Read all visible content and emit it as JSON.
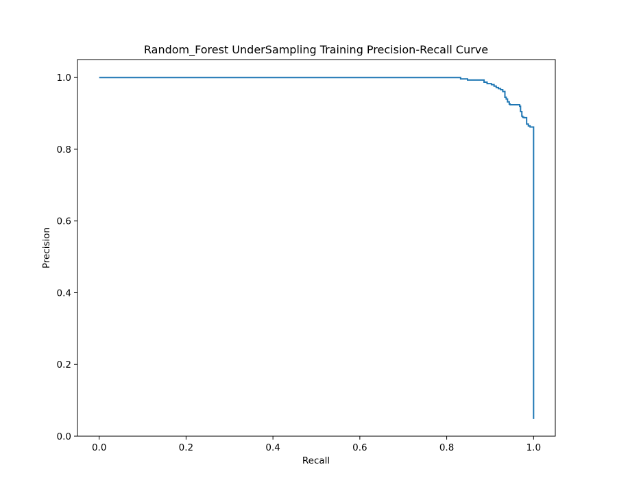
{
  "chart_data": {
    "type": "line",
    "title": "Random_Forest UnderSampling Training Precision-Recall Curve",
    "xlabel": "Recall",
    "ylabel": "Precision",
    "xlim": [
      -0.05,
      1.05
    ],
    "ylim": [
      0.0,
      1.05
    ],
    "xticks": [
      0.0,
      0.2,
      0.4,
      0.6,
      0.8,
      1.0
    ],
    "xtick_labels": [
      "0.0",
      "0.2",
      "0.4",
      "0.6",
      "0.8",
      "1.0"
    ],
    "yticks": [
      0.0,
      0.2,
      0.4,
      0.6,
      0.8,
      1.0
    ],
    "ytick_labels": [
      "0.0",
      "0.2",
      "0.4",
      "0.6",
      "0.8",
      "1.0"
    ],
    "grid": false,
    "legend": "none",
    "series": [
      {
        "color": "#1f77b4",
        "x": [
          0.0,
          0.832,
          0.832,
          0.848,
          0.848,
          0.886,
          0.886,
          0.893,
          0.893,
          0.903,
          0.903,
          0.909,
          0.909,
          0.914,
          0.914,
          0.919,
          0.919,
          0.924,
          0.924,
          0.929,
          0.929,
          0.934,
          0.934,
          0.937,
          0.937,
          0.94,
          0.94,
          0.944,
          0.944,
          0.946,
          0.946,
          0.95,
          0.95,
          0.968,
          0.968,
          0.97,
          0.97,
          0.973,
          0.973,
          0.975,
          0.975,
          0.978,
          0.978,
          0.984,
          0.984,
          0.988,
          0.988,
          0.992,
          0.992,
          1.0,
          1.0
        ],
        "y": [
          1.0,
          1.0,
          0.996,
          0.996,
          0.993,
          0.993,
          0.987,
          0.987,
          0.983,
          0.983,
          0.98,
          0.98,
          0.976,
          0.976,
          0.972,
          0.972,
          0.969,
          0.969,
          0.966,
          0.966,
          0.961,
          0.961,
          0.945,
          0.945,
          0.94,
          0.94,
          0.932,
          0.932,
          0.926,
          0.926,
          0.924,
          0.924,
          0.924,
          0.924,
          0.92,
          0.92,
          0.905,
          0.905,
          0.892,
          0.892,
          0.889,
          0.889,
          0.888,
          0.888,
          0.87,
          0.87,
          0.865,
          0.865,
          0.862,
          0.862,
          0.048
        ]
      }
    ]
  }
}
